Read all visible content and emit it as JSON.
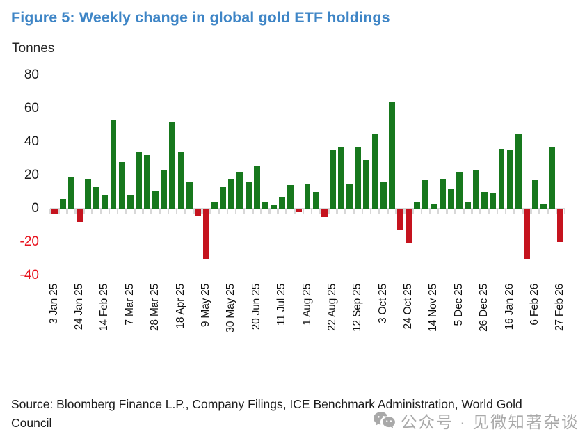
{
  "figure": {
    "title": "Figure 5: Weekly change in global gold ETF holdings",
    "unit_label": "Tonnes",
    "source": "Source: Bloomberg Finance L.P., Company Filings, ICE Benchmark Administration, World Gold Council",
    "watermark": "公众号 · 见微知著杂谈",
    "watermark_icon": "wechat-icon"
  },
  "colors": {
    "title": "#3e85c6",
    "positive": "#17781d",
    "negative": "#c5131e",
    "axis_line": "#d8d8d8",
    "tick_label": "#1a1a1a",
    "negative_tick_label": "#e8131e",
    "watermark": "#a9a9a9"
  },
  "chart_data": {
    "type": "bar",
    "title": "Figure 5: Weekly change in global gold ETF holdings",
    "xlabel": "",
    "ylabel": "Tonnes",
    "ylim": [
      -40,
      80
    ],
    "yticks": [
      80,
      60,
      40,
      20,
      0,
      -20,
      -40
    ],
    "grid": false,
    "legend": "none",
    "x_tick_every": 3,
    "x_tick_labels": [
      "3 Jan 25",
      "24 Jan 25",
      "14 Feb 25",
      "7 Mar 25",
      "28 Mar 25",
      "18 Apr 25",
      "9 May 25",
      "30 May 25",
      "20 Jun 25",
      "11 Jul 25",
      "1 Aug 25",
      "22 Aug 25",
      "12 Sep 25",
      "3 Oct 25",
      "24 Oct 25",
      "14 Nov 25",
      "5 Dec 25",
      "26 Dec 25",
      "16 Jan 26",
      "6 Feb 26",
      "27 Feb 26"
    ],
    "categories": [
      "3 Jan 25",
      "10 Jan 25",
      "17 Jan 25",
      "24 Jan 25",
      "31 Jan 25",
      "7 Feb 25",
      "14 Feb 25",
      "21 Feb 25",
      "28 Feb 25",
      "7 Mar 25",
      "14 Mar 25",
      "21 Mar 25",
      "28 Mar 25",
      "4 Apr 25",
      "11 Apr 25",
      "18 Apr 25",
      "25 Apr 25",
      "2 May 25",
      "9 May 25",
      "16 May 25",
      "23 May 25",
      "30 May 25",
      "6 Jun 25",
      "13 Jun 25",
      "20 Jun 25",
      "27 Jun 25",
      "4 Jul 25",
      "11 Jul 25",
      "18 Jul 25",
      "25 Jul 25",
      "1 Aug 25",
      "8 Aug 25",
      "15 Aug 25",
      "22 Aug 25",
      "29 Aug 25",
      "5 Sep 25",
      "12 Sep 25",
      "19 Sep 25",
      "26 Sep 25",
      "3 Oct 25",
      "10 Oct 25",
      "17 Oct 25",
      "24 Oct 25",
      "31 Oct 25",
      "7 Nov 25",
      "14 Nov 25",
      "21 Nov 25",
      "28 Nov 25",
      "5 Dec 25",
      "12 Dec 25",
      "19 Dec 25",
      "26 Dec 25",
      "2 Jan 26",
      "9 Jan 26",
      "16 Jan 26",
      "23 Jan 26",
      "30 Jan 26",
      "6 Feb 26",
      "13 Feb 26",
      "20 Feb 26",
      "27 Feb 26"
    ],
    "values": [
      -3,
      6,
      19,
      -8,
      18,
      13,
      8,
      53,
      28,
      8,
      34,
      32,
      11,
      23,
      52,
      34,
      16,
      -4,
      -30,
      4,
      13,
      18,
      22,
      16,
      26,
      4,
      2,
      7,
      14,
      -2,
      15,
      10,
      -5,
      35,
      37,
      15,
      37,
      29,
      45,
      16,
      64,
      -13,
      -21,
      4,
      17,
      3,
      18,
      12,
      22,
      4,
      23,
      10,
      9,
      36,
      35,
      45,
      -30,
      17,
      3,
      37,
      -20
    ]
  }
}
